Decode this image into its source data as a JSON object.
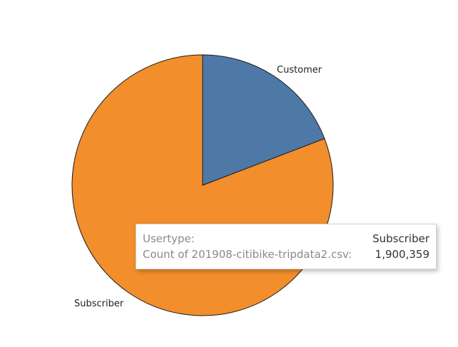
{
  "chart_data": {
    "type": "pie",
    "categories": [
      "Customer",
      "Subscriber"
    ],
    "values": [
      451000,
      1900359
    ],
    "colors": [
      "#4e79a7",
      "#f28e2b"
    ],
    "labels": [
      "Customer",
      "Subscriber"
    ],
    "start_angle_deg": 0,
    "direction": "clockwise"
  },
  "tooltip": {
    "rows": [
      {
        "key": "Usertype:",
        "value": "Subscriber"
      },
      {
        "key": "Count of 201908-citibike-tripdata2.csv:",
        "value": "1,900,359"
      }
    ]
  }
}
